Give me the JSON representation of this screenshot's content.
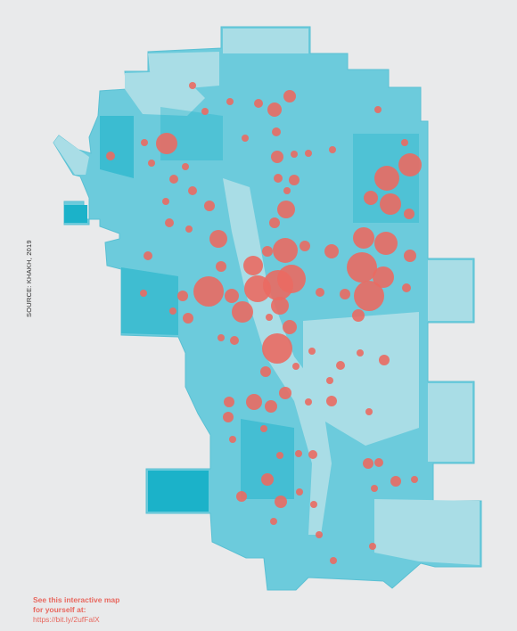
{
  "source_label": "SOURCE: KHAKH, 2019",
  "cta": {
    "line1": "See this interactive map",
    "line2": "for yourself at:",
    "link": "https://bit.ly/2ufFalX"
  },
  "colors": {
    "background": "#e9eaeb",
    "region_light": "#a9dde6",
    "region_mid": "#6ccbdc",
    "region_dark": "#1bb2c9",
    "bubble": "#ea6a62",
    "cta_text": "#e8685f"
  }
}
